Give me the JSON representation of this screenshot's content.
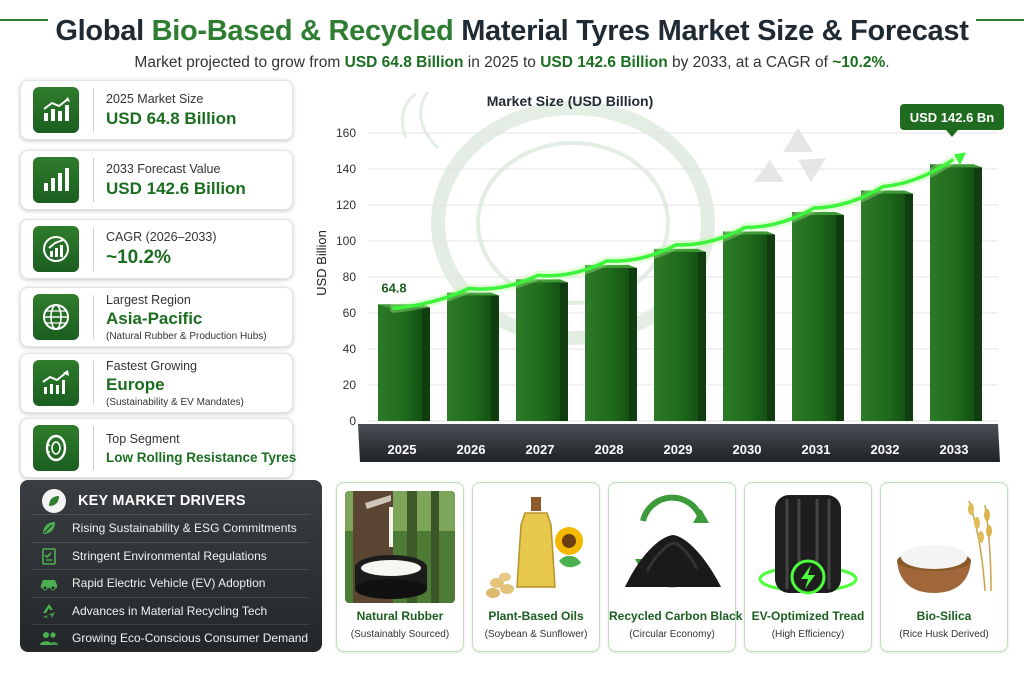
{
  "header": {
    "title_part1": "Global ",
    "title_highlight": "Bio-Based & Recycled",
    "title_part2": " Material Tyres Market Size & Forecast",
    "subtitle_1": "Market projected to grow from ",
    "subtitle_b1": "USD 64.8 Billion",
    "subtitle_2": " in 2025 to ",
    "subtitle_b2": "USD 142.6 Billion",
    "subtitle_3": " by 2033, at a CAGR of ",
    "subtitle_b3": "~10.2%",
    "subtitle_4": "."
  },
  "stats": [
    {
      "label": "2025 Market Size",
      "value": "USD 64.8 Billion",
      "note": "",
      "icon": "growth-chart-icon"
    },
    {
      "label": "2033 Forecast Value",
      "value": "USD 142.6 Billion",
      "note": "",
      "icon": "bar-chart-icon"
    },
    {
      "label": "CAGR (2026–2033)",
      "value": "~10.2%",
      "note": "",
      "icon": "trend-circle-icon"
    },
    {
      "label": "Largest Region",
      "value": "Asia-Pacific",
      "note": "(Natural Rubber & Production Hubs)",
      "icon": "globe-icon"
    },
    {
      "label": "Fastest Growing",
      "value": "Europe",
      "note": "(Sustainability & EV Mandates)",
      "icon": "rising-chart-icon"
    },
    {
      "label": "Top Segment",
      "value": "Low Rolling Resistance Tyres",
      "note": "",
      "icon": "tyre-icon"
    }
  ],
  "drivers": {
    "title": "KEY MARKET DRIVERS",
    "items": [
      {
        "label": "Rising Sustainability & ESG Commitments",
        "icon": "leaf-icon"
      },
      {
        "label": "Stringent Environmental Regulations",
        "icon": "checklist-icon"
      },
      {
        "label": "Rapid Electric Vehicle (EV) Adoption",
        "icon": "car-icon"
      },
      {
        "label": "Advances in Material Recycling Tech",
        "icon": "recycle-icon"
      },
      {
        "label": "Growing Eco-Conscious Consumer Demand",
        "icon": "people-icon"
      }
    ]
  },
  "materials": [
    {
      "name": "Natural Rubber",
      "sub": "(Sustainably Sourced)",
      "icon": "rubber-tap-icon"
    },
    {
      "name": "Plant-Based Oils",
      "sub": "(Soybean & Sunflower)",
      "icon": "oil-bottle-icon"
    },
    {
      "name": "Recycled Carbon Black",
      "sub": "(Circular Economy)",
      "icon": "carbon-pile-icon"
    },
    {
      "name": "EV-Optimized Tread",
      "sub": "(High Efficiency)",
      "icon": "ev-tyre-icon"
    },
    {
      "name": "Bio-Silica",
      "sub": "(Rice Husk Derived)",
      "icon": "silica-bowl-icon"
    }
  ],
  "colors": {
    "accent": "#2e7d32",
    "dark_green": "#1b5e20",
    "bright_green": "#4cff3a",
    "panel_dark": "#2b2f32"
  },
  "chart_data": {
    "type": "bar",
    "title": "Market Size (USD Billion)",
    "ylabel": "USD Billion",
    "xlabel": "",
    "ylim": [
      0,
      160
    ],
    "yticks": [
      0,
      20,
      40,
      60,
      80,
      100,
      120,
      140,
      160
    ],
    "categories": [
      "2025",
      "2026",
      "2027",
      "2028",
      "2029",
      "2030",
      "2031",
      "2032",
      "2033"
    ],
    "values": [
      64.8,
      71.4,
      78.7,
      86.7,
      95.6,
      105.3,
      116.1,
      128.0,
      142.6
    ],
    "labels": {
      "first": "64.8",
      "last": "USD 142.6 Bn"
    },
    "trend_line": true,
    "grid": true
  }
}
